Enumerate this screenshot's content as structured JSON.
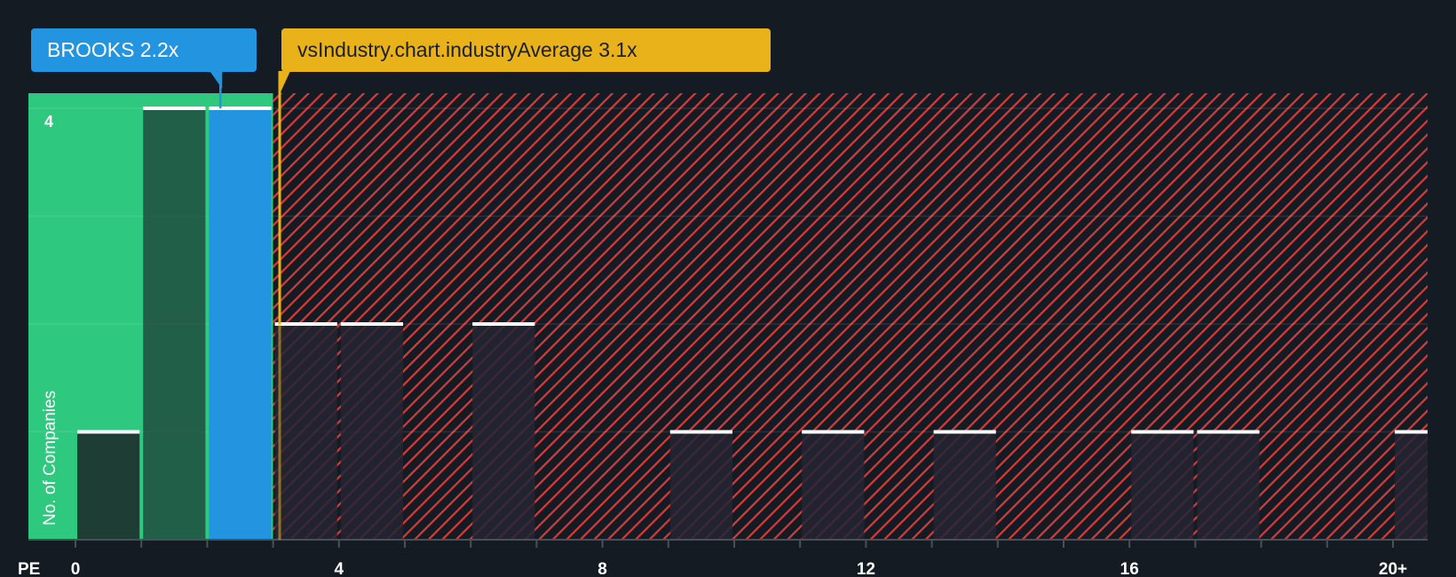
{
  "chart_data": {
    "type": "bar",
    "title": "",
    "xlabel": "PE",
    "ylabel": "No. of Companies",
    "bins": [
      {
        "from": 0,
        "to": 1,
        "count": 1
      },
      {
        "from": 1,
        "to": 2,
        "count": 4
      },
      {
        "from": 2,
        "to": 3,
        "count": 4,
        "highlight": true
      },
      {
        "from": 3,
        "to": 4,
        "count": 2
      },
      {
        "from": 4,
        "to": 5,
        "count": 2
      },
      {
        "from": 6,
        "to": 7,
        "count": 2
      },
      {
        "from": 9,
        "to": 10,
        "count": 1
      },
      {
        "from": 11,
        "to": 12,
        "count": 1
      },
      {
        "from": 13,
        "to": 14,
        "count": 1
      },
      {
        "from": 16,
        "to": 17,
        "count": 1
      },
      {
        "from": 17,
        "to": 18,
        "count": 1
      },
      {
        "from": 20,
        "to": 21,
        "count": 1
      }
    ],
    "x_ticks": [
      "0",
      "4",
      "8",
      "12",
      "16",
      "20+"
    ],
    "x_tick_values": [
      0,
      4,
      8,
      12,
      16,
      20
    ],
    "y_tick_label": "4",
    "ylim": [
      0,
      4
    ],
    "xlim": [
      -0.7,
      20.5
    ],
    "company": {
      "label": "BROOKS 2.2x",
      "value": 2.2
    },
    "industry_average": {
      "label": "vsIndustry.chart.industryAverage 3.1x",
      "value": 3.1
    },
    "colors": {
      "background": "#151b23",
      "undervalued": "#2ec87f",
      "company": "#2394df",
      "industry": "#e9b11a",
      "overvalued": "#d93b3b"
    }
  }
}
